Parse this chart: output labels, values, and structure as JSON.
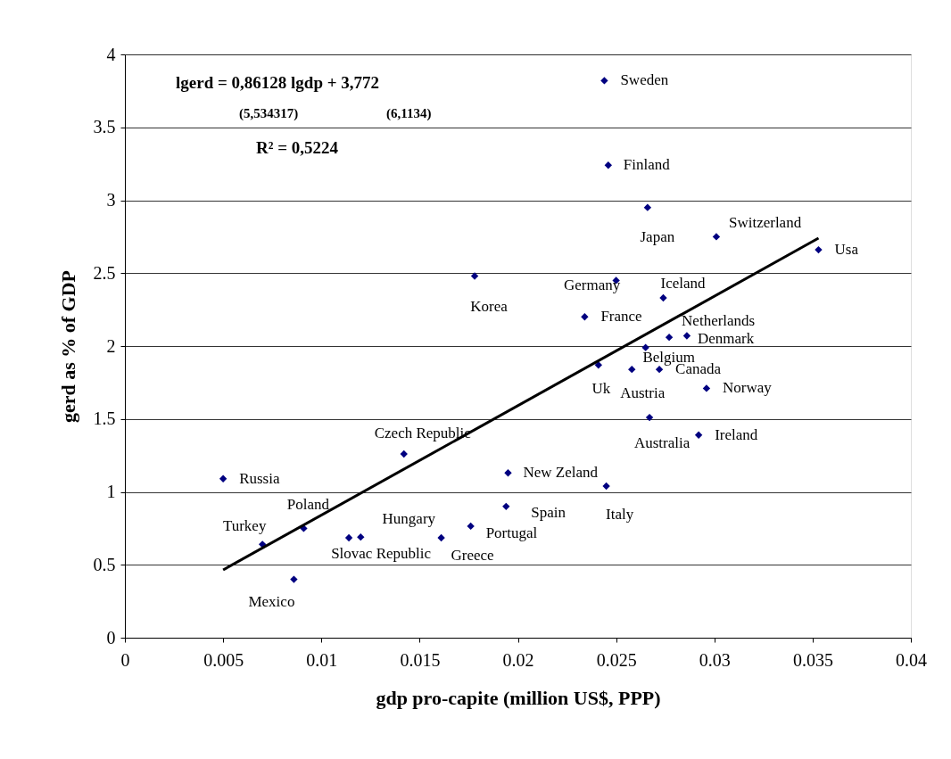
{
  "chart_data": {
    "type": "scatter",
    "xlabel": "gdp pro-capite (million US$, PPP)",
    "ylabel": "gerd as % of GDP",
    "xlim": [
      0,
      0.04
    ],
    "xticks": [
      0,
      0.005,
      0.01,
      0.015,
      0.02,
      0.025,
      0.03,
      0.035,
      0.04
    ],
    "ylim": [
      0,
      4
    ],
    "yticks": [
      0,
      0.5,
      1,
      1.5,
      2,
      2.5,
      3,
      3.5,
      4
    ],
    "grid": "y",
    "annotations": [
      "lgerd = 0,86128 lgdp + 3,772",
      "(5,534317)",
      "(6,1134)",
      "R² = 0,5224"
    ],
    "series": [
      {
        "color": "#000080",
        "marker": "diamond",
        "x": [
          0.005,
          0.007,
          0.0091,
          0.0086,
          0.0114,
          0.012,
          0.0142,
          0.0161,
          0.0176,
          0.0178,
          0.0194,
          0.0195,
          0.0234,
          0.0241,
          0.0244,
          0.0245,
          0.0246,
          0.025,
          0.0258,
          0.0265,
          0.0266,
          0.0267,
          0.0272,
          0.0274,
          0.0277,
          0.0286,
          0.0292,
          0.0296,
          0.0301,
          0.0353
        ],
        "values": [
          1.09,
          0.64,
          0.75,
          0.4,
          0.685,
          0.69,
          1.26,
          0.685,
          0.765,
          2.48,
          0.9,
          1.13,
          2.2,
          1.87,
          3.82,
          1.04,
          3.24,
          2.45,
          1.84,
          1.99,
          2.95,
          1.51,
          1.84,
          2.33,
          2.06,
          2.07,
          1.39,
          1.71,
          2.75,
          2.66
        ],
        "value_labels": [
          "Russia",
          "Turkey",
          "Poland",
          "Mexico",
          "Slovac Republic",
          "Hungary",
          "Czech Republic",
          "Greece",
          "Portugal",
          "Korea",
          "Spain",
          "New Zeland",
          "France",
          "Uk",
          "Sweden",
          "Italy",
          "Finland",
          "Germany",
          "Austria",
          "Belgium",
          "Japan",
          "Australia",
          "Canada",
          "Iceland",
          "Netherlands",
          "Denmark",
          "Ireland",
          "Norway",
          "Switzerland",
          "Usa"
        ]
      },
      {
        "type": "line",
        "color": "#000000",
        "x": [
          0.005,
          0.0353
        ],
        "values": [
          0.465,
          2.74
        ]
      }
    ]
  }
}
